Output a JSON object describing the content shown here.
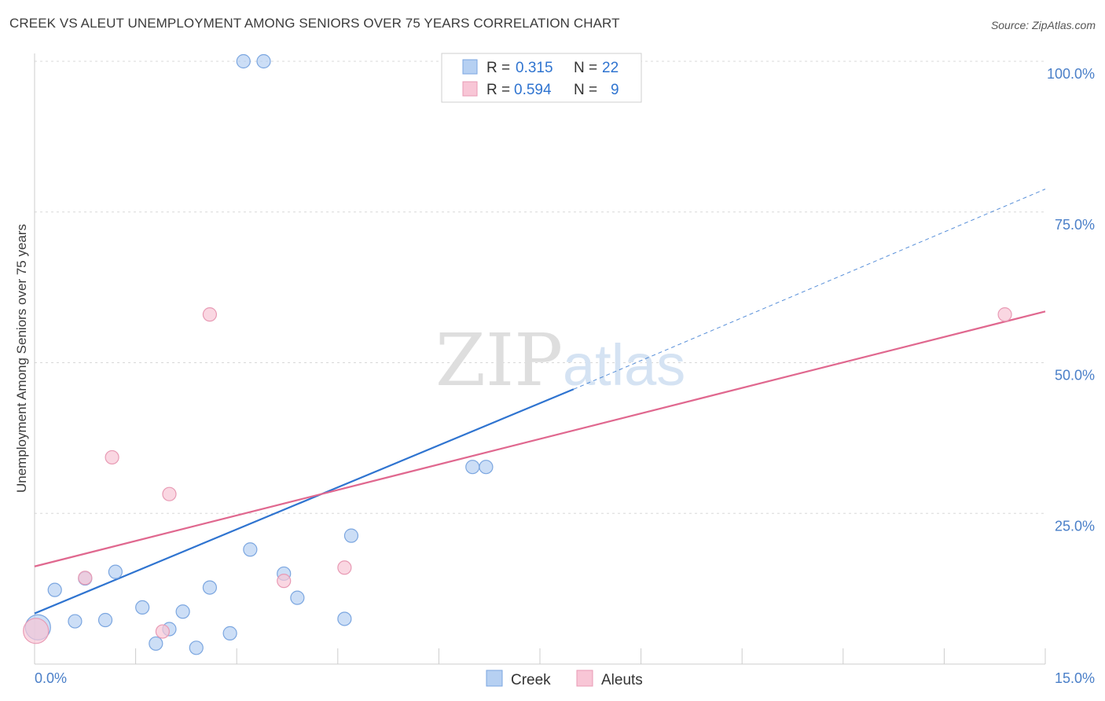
{
  "title": "CREEK VS ALEUT UNEMPLOYMENT AMONG SENIORS OVER 75 YEARS CORRELATION CHART",
  "source": "Source: ZipAtlas.com",
  "watermark": {
    "zip": "ZIP",
    "atlas": "atlas"
  },
  "colors": {
    "creek": "#2f74d0",
    "creek_fill": "#b6d0f2",
    "aleut": "#e0688f",
    "aleut_fill": "#f8c6d6",
    "axis_text": "#4a7fc8"
  },
  "legend_top": [
    {
      "series": "Creek",
      "r_label": "R =",
      "r_value": "0.315",
      "n_label": "N =",
      "n_value": "22"
    },
    {
      "series": "Aleuts",
      "r_label": "R =",
      "r_value": "0.594",
      "n_label": "N =",
      "n_value": "9"
    }
  ],
  "legend_bottom": [
    "Creek",
    "Aleuts"
  ],
  "chart_data": {
    "type": "scatter",
    "title": "CREEK VS ALEUT UNEMPLOYMENT AMONG SENIORS OVER 75 YEARS CORRELATION CHART",
    "xlabel": "",
    "ylabel": "Unemployment Among Seniors over 75 years",
    "xlim": [
      0,
      15
    ],
    "ylim": [
      0,
      100
    ],
    "x_tick_labels": [
      "0.0%",
      "15.0%"
    ],
    "y_tick_values": [
      25,
      50,
      75,
      100
    ],
    "y_tick_labels": [
      "25.0%",
      "50.0%",
      "75.0%",
      "100.0%"
    ],
    "series": [
      {
        "name": "Creek",
        "points": [
          {
            "x": 3.1,
            "y": 100
          },
          {
            "x": 3.4,
            "y": 100
          },
          {
            "x": 6.5,
            "y": 32.7
          },
          {
            "x": 6.7,
            "y": 32.7
          },
          {
            "x": 4.7,
            "y": 21.3
          },
          {
            "x": 3.2,
            "y": 19
          },
          {
            "x": 1.2,
            "y": 15.3
          },
          {
            "x": 0.75,
            "y": 14.2
          },
          {
            "x": 3.7,
            "y": 15
          },
          {
            "x": 0.3,
            "y": 12.3
          },
          {
            "x": 2.6,
            "y": 12.7
          },
          {
            "x": 3.9,
            "y": 11
          },
          {
            "x": 1.6,
            "y": 9.4
          },
          {
            "x": 2.2,
            "y": 8.7
          },
          {
            "x": 0.6,
            "y": 7.1
          },
          {
            "x": 1.05,
            "y": 7.3
          },
          {
            "x": 4.6,
            "y": 7.5
          },
          {
            "x": 2.0,
            "y": 5.8
          },
          {
            "x": 2.9,
            "y": 5.1
          },
          {
            "x": 1.8,
            "y": 3.4
          },
          {
            "x": 2.4,
            "y": 2.7
          },
          {
            "x": 0.05,
            "y": 6.1
          }
        ],
        "trend": {
          "x0": 0,
          "y0": 8.4,
          "x1": 8,
          "y1": 45.6,
          "dashed_to_x": 15,
          "dashed_to_y": 78.8
        }
      },
      {
        "name": "Aleuts",
        "points": [
          {
            "x": 2.6,
            "y": 58
          },
          {
            "x": 1.15,
            "y": 34.3
          },
          {
            "x": 2.0,
            "y": 28.2
          },
          {
            "x": 4.6,
            "y": 16
          },
          {
            "x": 3.7,
            "y": 13.8
          },
          {
            "x": 0.75,
            "y": 14.3
          },
          {
            "x": 1.9,
            "y": 5.4
          },
          {
            "x": 14.4,
            "y": 58
          },
          {
            "x": 0.02,
            "y": 5.5
          }
        ],
        "trend": {
          "x0": 0,
          "y0": 16.2,
          "x1": 15,
          "y1": 58.5
        }
      }
    ]
  }
}
